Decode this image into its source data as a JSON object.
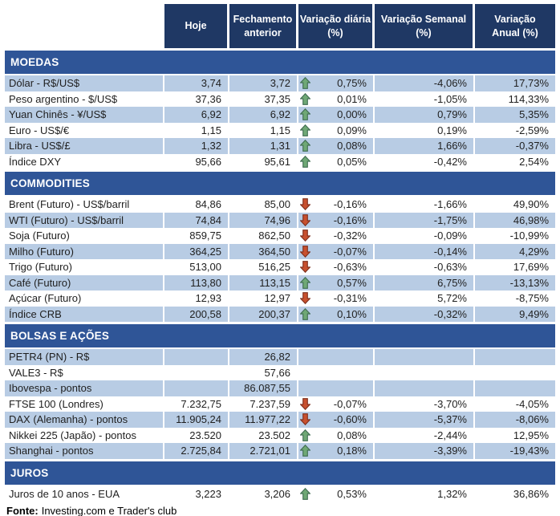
{
  "chart_data": {
    "type": "table",
    "columns": [
      {
        "label": "Hoje"
      },
      {
        "label": "Fechamento\nanterior"
      },
      {
        "label": "Variação diária\n(%)"
      },
      {
        "label": "Variação Semanal\n(%)"
      },
      {
        "label": "Variação\nAnual (%)"
      }
    ],
    "sections": [
      {
        "title": "MOEDAS",
        "rows": [
          {
            "label": "Dólar - R$/US$",
            "hoje": "3,74",
            "fechamento": "3,72",
            "arrow": "up",
            "var_diaria": "0,75%",
            "var_semanal": "-4,06%",
            "var_anual": "17,73%",
            "shade": true
          },
          {
            "label": "Peso argentino - $/US$",
            "hoje": "37,36",
            "fechamento": "37,35",
            "arrow": "up",
            "var_diaria": "0,01%",
            "var_semanal": "-1,05%",
            "var_anual": "114,33%",
            "shade": false
          },
          {
            "label": "Yuan Chinês - ¥/US$",
            "hoje": "6,92",
            "fechamento": "6,92",
            "arrow": "up",
            "var_diaria": "0,00%",
            "var_semanal": "0,79%",
            "var_anual": "5,35%",
            "shade": true
          },
          {
            "label": "Euro - US$/€",
            "hoje": "1,15",
            "fechamento": "1,15",
            "arrow": "up",
            "var_diaria": "0,09%",
            "var_semanal": "0,19%",
            "var_anual": "-2,59%",
            "shade": false
          },
          {
            "label": "Libra - US$/£",
            "hoje": "1,32",
            "fechamento": "1,31",
            "arrow": "up",
            "var_diaria": "0,08%",
            "var_semanal": "1,66%",
            "var_anual": "-0,37%",
            "shade": true
          },
          {
            "label": "Índice DXY",
            "hoje": "95,66",
            "fechamento": "95,61",
            "arrow": "up",
            "var_diaria": "0,05%",
            "var_semanal": "-0,42%",
            "var_anual": "2,54%",
            "shade": false
          }
        ]
      },
      {
        "title": "COMMODITIES",
        "rows": [
          {
            "label": "Brent (Futuro) - US$/barril",
            "hoje": "84,86",
            "fechamento": "85,00",
            "arrow": "down",
            "var_diaria": "-0,16%",
            "var_semanal": "-1,66%",
            "var_anual": "49,90%",
            "shade": false
          },
          {
            "label": "WTI (Futuro) - US$/barril",
            "hoje": "74,84",
            "fechamento": "74,96",
            "arrow": "down",
            "var_diaria": "-0,16%",
            "var_semanal": "-1,75%",
            "var_anual": "46,98%",
            "shade": true
          },
          {
            "label": "Soja (Futuro)",
            "hoje": "859,75",
            "fechamento": "862,50",
            "arrow": "down",
            "var_diaria": "-0,32%",
            "var_semanal": "-0,09%",
            "var_anual": "-10,99%",
            "shade": false
          },
          {
            "label": "Milho (Futuro)",
            "hoje": "364,25",
            "fechamento": "364,50",
            "arrow": "down",
            "var_diaria": "-0,07%",
            "var_semanal": "-0,14%",
            "var_anual": "4,29%",
            "shade": true
          },
          {
            "label": "Trigo (Futuro)",
            "hoje": "513,00",
            "fechamento": "516,25",
            "arrow": "down",
            "var_diaria": "-0,63%",
            "var_semanal": "-0,63%",
            "var_anual": "17,69%",
            "shade": false
          },
          {
            "label": "Café (Futuro)",
            "hoje": "113,80",
            "fechamento": "113,15",
            "arrow": "up",
            "var_diaria": "0,57%",
            "var_semanal": "6,75%",
            "var_anual": "-13,13%",
            "shade": true
          },
          {
            "label": "Açúcar (Futuro)",
            "hoje": "12,93",
            "fechamento": "12,97",
            "arrow": "down",
            "var_diaria": "-0,31%",
            "var_semanal": "5,72%",
            "var_anual": "-8,75%",
            "shade": false
          },
          {
            "label": "Índice CRB",
            "hoje": "200,58",
            "fechamento": "200,37",
            "arrow": "up",
            "var_diaria": "0,10%",
            "var_semanal": "-0,32%",
            "var_anual": "9,49%",
            "shade": true
          }
        ]
      },
      {
        "title": "BOLSAS E AÇÕES",
        "rows": [
          {
            "label": "PETR4 (PN) - R$",
            "hoje": "",
            "fechamento": "26,82",
            "arrow": "",
            "var_diaria": "",
            "var_semanal": "",
            "var_anual": "",
            "shade": true
          },
          {
            "label": "VALE3 - R$",
            "hoje": "",
            "fechamento": "57,66",
            "arrow": "",
            "var_diaria": "",
            "var_semanal": "",
            "var_anual": "",
            "shade": false
          },
          {
            "label": "Ibovespa - pontos",
            "hoje": "",
            "fechamento": "86.087,55",
            "arrow": "",
            "var_diaria": "",
            "var_semanal": "",
            "var_anual": "",
            "shade": true
          },
          {
            "label": "FTSE 100 (Londres)",
            "hoje": "7.232,75",
            "fechamento": "7.237,59",
            "arrow": "down",
            "var_diaria": "-0,07%",
            "var_semanal": "-3,70%",
            "var_anual": "-4,05%",
            "shade": false
          },
          {
            "label": "DAX (Alemanha) - pontos",
            "hoje": "11.905,24",
            "fechamento": "11.977,22",
            "arrow": "down",
            "var_diaria": "-0,60%",
            "var_semanal": "-5,37%",
            "var_anual": "-8,06%",
            "shade": true
          },
          {
            "label": "Nikkei 225 (Japão) - pontos",
            "hoje": "23.520",
            "fechamento": "23.502",
            "arrow": "up",
            "var_diaria": "0,08%",
            "var_semanal": "-2,44%",
            "var_anual": "12,95%",
            "shade": false
          },
          {
            "label": "Shanghai - pontos",
            "hoje": "2.725,84",
            "fechamento": "2.721,01",
            "arrow": "up",
            "var_diaria": "0,18%",
            "var_semanal": "-3,39%",
            "var_anual": "-19,43%",
            "shade": true
          }
        ]
      },
      {
        "title": "JUROS",
        "rows": [
          {
            "label": "Juros de 10 anos - EUA",
            "hoje": "3,223",
            "fechamento": "3,206",
            "arrow": "up",
            "var_diaria": "0,53%",
            "var_semanal": "1,32%",
            "var_anual": "36,86%",
            "shade": false
          }
        ]
      }
    ]
  },
  "footer": {
    "label": "Fonte:",
    "text": "Investing.com e Trader's club"
  },
  "colors": {
    "header_bg": "#1F3864",
    "section_bg": "#2F5597",
    "row_shade": "#B8CCE4",
    "arrow_up_fill": "#6FA875",
    "arrow_up_stroke": "#3F6C51",
    "arrow_down_fill": "#C8502E",
    "arrow_down_stroke": "#7D2E1C"
  }
}
